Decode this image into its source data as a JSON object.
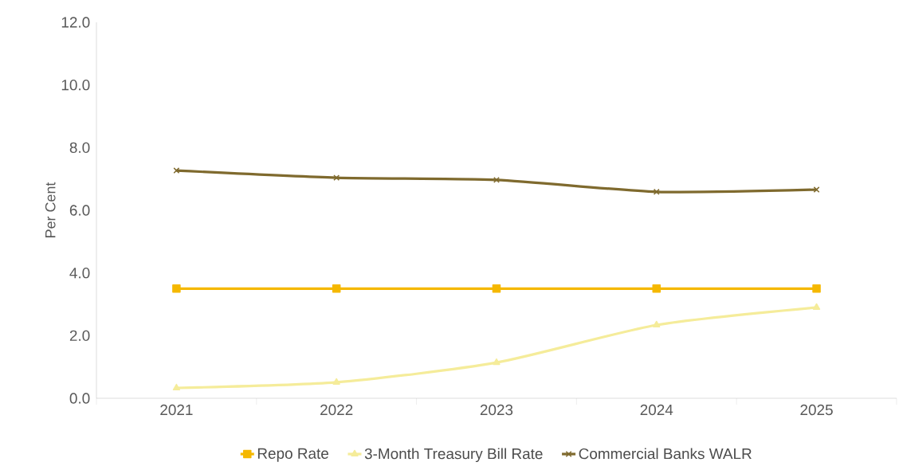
{
  "chart_data": {
    "type": "line",
    "ylabel": "Per Cent",
    "categories": [
      "2021",
      "2022",
      "2023",
      "2024",
      "2025"
    ],
    "series": [
      {
        "name": "Repo Rate",
        "color": "#f5b800",
        "marker": "square",
        "values": [
          3.5,
          3.5,
          3.5,
          3.5,
          3.5
        ]
      },
      {
        "name": "3-Month Treasury Bill Rate",
        "color": "#f5ec9a",
        "marker": "triangle",
        "values": [
          0.33,
          0.51,
          1.14,
          2.34,
          2.9
        ]
      },
      {
        "name": "Commercial Banks WALR",
        "color": "#7f6a2e",
        "marker": "cross",
        "values": [
          7.27,
          7.04,
          6.97,
          6.59,
          6.66
        ]
      }
    ],
    "ylim": [
      0,
      12
    ],
    "yticks": [
      {
        "value": 0,
        "label": "0.0"
      },
      {
        "value": 2,
        "label": "2.0"
      },
      {
        "value": 4,
        "label": "4.0"
      },
      {
        "value": 6,
        "label": "6.0"
      },
      {
        "value": 8,
        "label": "8.0"
      },
      {
        "value": 10,
        "label": "10.0"
      },
      {
        "value": 12,
        "label": "12.0"
      }
    ],
    "grid": false,
    "legend": "bottom",
    "line_style": "solid"
  }
}
